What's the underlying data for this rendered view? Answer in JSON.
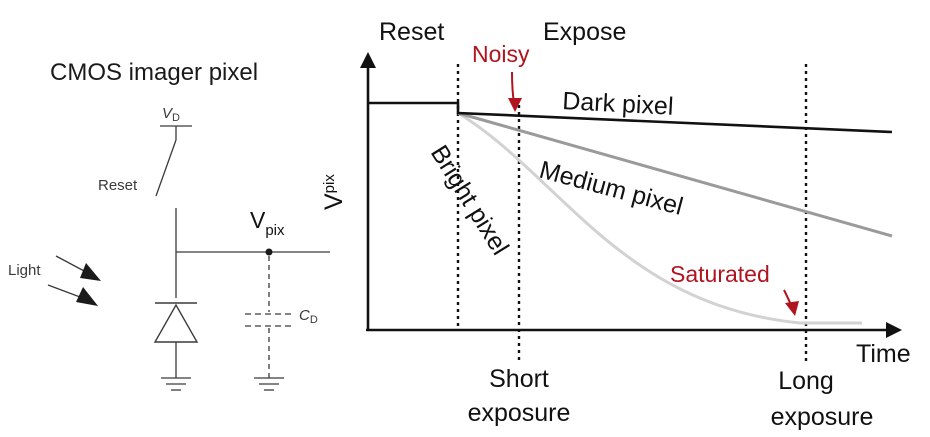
{
  "circuit": {
    "title": "CMOS imager pixel",
    "vd_label": "V",
    "vd_sub": "D",
    "reset_label": "Reset",
    "light_label": "Light",
    "vpix_label": "V",
    "vpix_sub": "pix",
    "cd_label": "C",
    "cd_sub": "D"
  },
  "plot": {
    "phase_reset": "Reset",
    "phase_expose": "Expose",
    "y_label": "V",
    "y_sub": "pix",
    "x_label": "Time",
    "curves": {
      "dark": "Dark pixel",
      "medium": "Medium pixel",
      "bright": "Bright pixel"
    },
    "annotations": {
      "noisy": "Noisy",
      "saturated": "Saturated"
    },
    "markers": {
      "short_line1": "Short",
      "short_line2": "exposure",
      "long_line1": "Long",
      "long_line2": "exposure"
    }
  },
  "colors": {
    "ink": "#111111",
    "circuit": "#3a3a3a",
    "accent_red": "#b0141e",
    "medium_curve": "#9a9a9a",
    "bright_curve": "#d2d2d2"
  }
}
